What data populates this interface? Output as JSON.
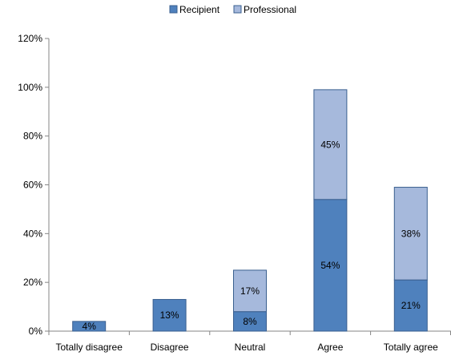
{
  "chart_data": {
    "type": "bar",
    "stacked": true,
    "categories": [
      "Totally disagree",
      "Disagree",
      "Neutral",
      "Agree",
      "Totally agree"
    ],
    "series": [
      {
        "name": "Recipient",
        "color": "#4f81bd",
        "values": [
          4,
          13,
          8,
          54,
          21
        ],
        "labels": [
          "4%",
          "13%",
          "8%",
          "54%",
          "21%"
        ]
      },
      {
        "name": "Professional",
        "color": "#a6b9dc",
        "values": [
          0,
          0,
          17,
          45,
          38
        ],
        "labels": [
          "",
          "",
          "17%",
          "45%",
          "38%"
        ]
      }
    ],
    "ylim": [
      0,
      120
    ],
    "yticks": [
      0,
      20,
      40,
      60,
      80,
      100,
      120
    ],
    "ytick_labels": [
      "0%",
      "20%",
      "40%",
      "60%",
      "80%",
      "100%",
      "120%"
    ],
    "grid": false,
    "legend_position": "top-center"
  }
}
